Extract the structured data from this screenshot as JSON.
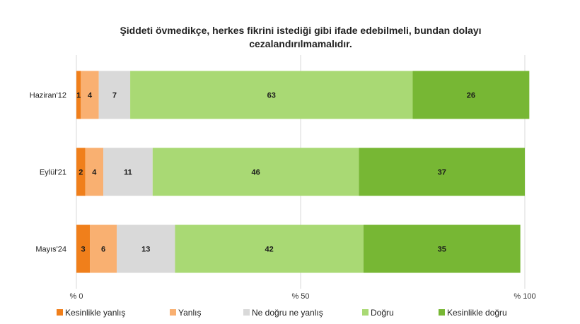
{
  "chart_data": {
    "type": "bar",
    "orientation": "horizontal",
    "stacked": true,
    "title": [
      "Şiddeti övmedikçe, herkes fikrini istediği gibi ifade edebilmeli, bundan dolayı",
      "cezalandırılmamalıdır."
    ],
    "categories": [
      "Haziran'12",
      "Eylül'21",
      "Mayıs'24"
    ],
    "xlim": [
      0,
      100
    ],
    "x_ticks": [
      0,
      50,
      100
    ],
    "x_tick_labels": [
      "% 0",
      "% 50",
      "% 100"
    ],
    "grid": true,
    "legend_position": "bottom",
    "series": [
      {
        "name": "Kesinlikle yanlış",
        "color": "#f07f1b",
        "values": [
          1,
          2,
          3
        ]
      },
      {
        "name": "Yanlış",
        "color": "#f9b071",
        "values": [
          4,
          4,
          6
        ]
      },
      {
        "name": "Ne doğru ne yanlış",
        "color": "#d9d9d9",
        "values": [
          7,
          11,
          13
        ]
      },
      {
        "name": "Doğru",
        "color": "#a9d974",
        "values": [
          63,
          46,
          42
        ]
      },
      {
        "name": "Kesinlikle doğru",
        "color": "#77b734",
        "values": [
          26,
          37,
          35
        ]
      }
    ]
  }
}
